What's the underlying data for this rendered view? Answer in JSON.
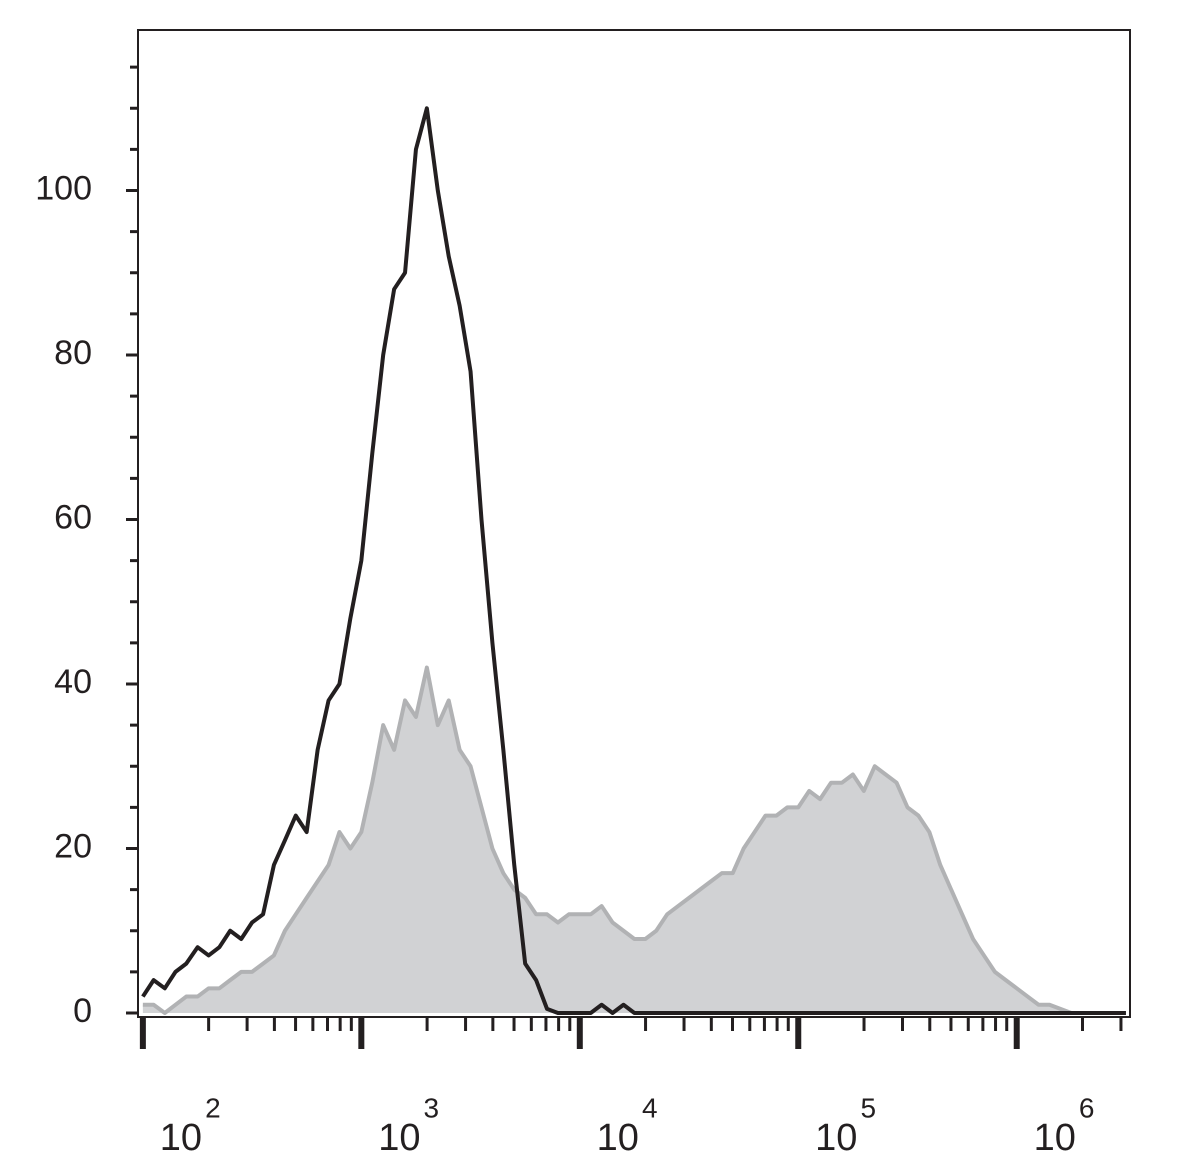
{
  "chart_data": {
    "type": "histogram-overlay",
    "xscale": "log",
    "xlim": [
      95,
      3300000
    ],
    "ylim": [
      0,
      120
    ],
    "yticks": [
      0,
      20,
      40,
      60,
      80,
      100
    ],
    "y_minor_ticks": [
      5,
      10,
      15,
      25,
      30,
      35,
      45,
      50,
      55,
      65,
      70,
      75,
      85,
      90,
      95,
      105,
      110,
      115
    ],
    "xticks": [
      {
        "value": 100,
        "label": "10",
        "exponent": "2"
      },
      {
        "value": 1000,
        "label": "10",
        "exponent": "3"
      },
      {
        "value": 10000,
        "label": "10",
        "exponent": "4"
      },
      {
        "value": 100000,
        "label": "10",
        "exponent": "5"
      },
      {
        "value": 1000000,
        "label": "10",
        "exponent": "6"
      }
    ],
    "x_minor_ticks": [
      200,
      300,
      400,
      500,
      600,
      700,
      800,
      900,
      2000,
      3000,
      4000,
      5000,
      6000,
      7000,
      8000,
      9000,
      20000,
      30000,
      40000,
      50000,
      60000,
      70000,
      80000,
      90000,
      200000,
      300000,
      400000,
      500000,
      600000,
      700000,
      800000,
      900000,
      2000000,
      3000000
    ],
    "x": [
      100,
      112,
      126,
      141,
      158,
      178,
      200,
      224,
      251,
      282,
      316,
      355,
      398,
      447,
      501,
      562,
      631,
      708,
      794,
      891,
      1000,
      1122,
      1259,
      1413,
      1585,
      1778,
      1995,
      2239,
      2512,
      2818,
      3162,
      3548,
      3981,
      4467,
      5012,
      5623,
      6310,
      7079,
      7943,
      8913,
      10000,
      11220,
      12589,
      14125,
      15849,
      17783,
      19953,
      22387,
      25119,
      28184,
      31623,
      35481,
      39811,
      44668,
      50119,
      56234,
      63096,
      70795,
      79433,
      89125,
      100000,
      112202,
      125893,
      141254,
      158489,
      177828,
      199526,
      223872,
      251189,
      281838,
      316228,
      354813,
      398107,
      446684,
      501187,
      562341,
      630957,
      707946,
      794328,
      891251,
      1000000,
      1122018,
      1258925,
      1412538,
      1584893,
      1778279,
      1995262,
      2238721,
      2511886,
      2818383,
      3162278
    ],
    "series": [
      {
        "style": "area",
        "color": "#d1d2d4",
        "line_color": "#b1b2b4",
        "values": [
          1,
          1,
          0,
          1,
          2,
          2,
          3,
          3,
          4,
          5,
          5,
          6,
          7,
          10,
          12,
          14,
          16,
          18,
          22,
          20,
          22,
          28,
          35,
          32,
          38,
          36,
          42,
          35,
          38,
          32,
          30,
          25,
          20,
          17,
          15,
          14,
          12,
          12,
          11,
          12,
          12,
          12,
          13,
          11,
          10,
          9,
          9,
          10,
          12,
          13,
          14,
          15,
          16,
          17,
          17,
          20,
          22,
          24,
          24,
          25,
          25,
          27,
          26,
          28,
          28,
          29,
          27,
          30,
          29,
          28,
          25,
          24,
          22,
          18,
          15,
          12,
          9,
          7,
          5,
          4,
          3,
          2,
          1,
          1,
          0.5,
          0,
          null,
          null,
          null,
          null,
          null
        ]
      },
      {
        "style": "line",
        "color": "#231f20",
        "values": [
          2,
          4,
          3,
          5,
          6,
          8,
          7,
          8,
          10,
          9,
          11,
          12,
          18,
          21,
          24,
          22,
          32,
          38,
          40,
          48,
          55,
          68,
          80,
          88,
          90,
          105,
          110,
          100,
          92,
          86,
          78,
          60,
          45,
          32,
          18,
          6,
          4,
          0.5,
          0,
          0,
          0,
          0,
          1,
          0,
          1,
          0,
          0,
          0,
          0,
          0,
          0,
          0,
          0,
          0,
          0,
          0,
          0,
          0,
          0,
          0,
          0,
          0,
          0,
          0,
          0,
          0,
          0,
          0,
          0,
          0,
          0,
          0,
          0,
          0,
          0,
          0,
          0,
          0,
          0,
          0,
          0,
          0,
          0,
          0,
          0,
          0,
          0,
          0,
          0,
          0,
          0
        ]
      }
    ]
  }
}
